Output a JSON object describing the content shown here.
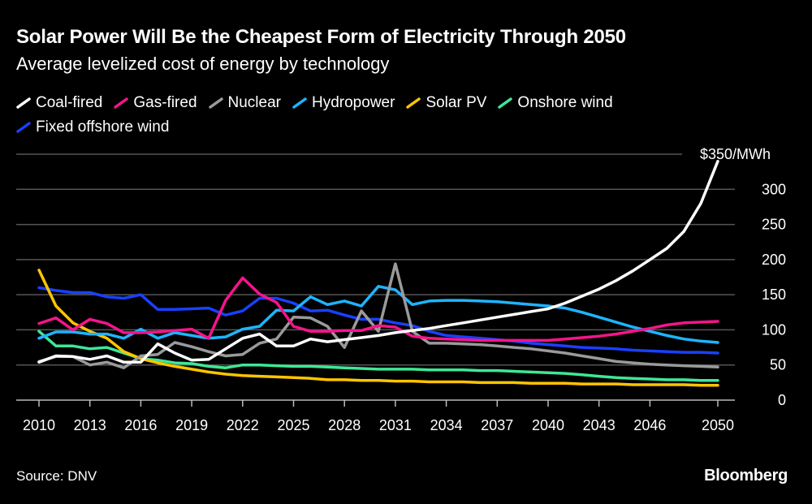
{
  "title": "Solar Power Will Be the Cheapest Form of Electricity Through 2050",
  "subtitle": "Average levelized cost of energy by technology",
  "source": "Source: DNV",
  "logo": "Bloomberg",
  "chart_data": {
    "type": "line",
    "title": "Solar Power Will Be the Cheapest Form of Electricity Through 2050",
    "subtitle": "Average levelized cost of energy by technology",
    "unit_label": "$350/MWh",
    "x": [
      2010,
      2011,
      2012,
      2013,
      2014,
      2015,
      2016,
      2017,
      2018,
      2019,
      2020,
      2021,
      2022,
      2023,
      2024,
      2025,
      2026,
      2027,
      2028,
      2029,
      2030,
      2031,
      2032,
      2033,
      2034,
      2035,
      2036,
      2037,
      2038,
      2039,
      2040,
      2041,
      2042,
      2043,
      2044,
      2045,
      2046,
      2047,
      2048,
      2049,
      2050
    ],
    "xticks": [
      "2010",
      "2013",
      "2016",
      "2019",
      "2022",
      "2025",
      "2028",
      "2031",
      "2034",
      "2037",
      "2040",
      "2043",
      "2046",
      "2050"
    ],
    "xtick_values": [
      2010,
      2013,
      2016,
      2019,
      2022,
      2025,
      2028,
      2031,
      2034,
      2037,
      2040,
      2043,
      2046,
      2050
    ],
    "yticks": [
      "0",
      "50",
      "100",
      "150",
      "200",
      "250",
      "300"
    ],
    "ytick_values": [
      0,
      50,
      100,
      150,
      200,
      250,
      300
    ],
    "ylim": [
      0,
      350
    ],
    "xlim": [
      2010,
      2050
    ],
    "grid": true,
    "legend_position": "top",
    "series": [
      {
        "name": "Coal-fired",
        "color": "#ffffff",
        "values": [
          54,
          63,
          62,
          58,
          63,
          54,
          54,
          80,
          67,
          57,
          58,
          73,
          88,
          94,
          77,
          77,
          87,
          83,
          86,
          89,
          92,
          96,
          99,
          102,
          106,
          110,
          114,
          118,
          122,
          126,
          130,
          138,
          148,
          158,
          170,
          184,
          200,
          216,
          240,
          280,
          340
        ]
      },
      {
        "name": "Gas-fired",
        "color": "#f5148b",
        "values": [
          109,
          117,
          100,
          115,
          109,
          96,
          96,
          97,
          99,
          101,
          88,
          142,
          174,
          151,
          139,
          105,
          98,
          98,
          99,
          99,
          106,
          104,
          91,
          88,
          87,
          86,
          85,
          85,
          85,
          85,
          85,
          87,
          89,
          91,
          94,
          98,
          102,
          107,
          110,
          111,
          112
        ]
      },
      {
        "name": "Nuclear",
        "color": "#9a9a9a",
        "values": [
          55,
          62,
          62,
          50,
          54,
          46,
          63,
          65,
          82,
          76,
          69,
          63,
          65,
          81,
          87,
          118,
          117,
          105,
          75,
          127,
          98,
          194,
          98,
          81,
          81,
          80,
          79,
          77,
          75,
          73,
          70,
          67,
          63,
          59,
          55,
          53,
          51,
          50,
          49,
          48,
          47
        ]
      },
      {
        "name": "Hydropower",
        "color": "#1eb4ff",
        "values": [
          88,
          97,
          97,
          94,
          94,
          88,
          101,
          88,
          96,
          92,
          88,
          90,
          101,
          105,
          128,
          127,
          147,
          136,
          141,
          134,
          162,
          157,
          136,
          141,
          142,
          142,
          141,
          140,
          138,
          136,
          134,
          131,
          125,
          118,
          111,
          104,
          98,
          92,
          87,
          84,
          82
        ]
      },
      {
        "name": "Solar PV",
        "color": "#ffc400",
        "values": [
          185,
          134,
          110,
          98,
          88,
          69,
          59,
          53,
          48,
          44,
          40,
          37,
          35,
          34,
          33,
          32,
          31,
          29,
          29,
          28,
          28,
          27,
          27,
          26,
          26,
          26,
          25,
          25,
          25,
          24,
          24,
          24,
          23,
          23,
          23,
          22,
          22,
          22,
          22,
          21,
          21
        ]
      },
      {
        "name": "Onshore wind",
        "color": "#3ee796",
        "values": [
          98,
          77,
          77,
          73,
          75,
          67,
          59,
          57,
          53,
          52,
          48,
          46,
          50,
          50,
          49,
          48,
          48,
          47,
          46,
          45,
          44,
          44,
          44,
          43,
          43,
          43,
          42,
          42,
          41,
          40,
          39,
          38,
          36,
          34,
          32,
          31,
          30,
          29,
          29,
          28,
          28
        ]
      },
      {
        "name": "Fixed offshore wind",
        "color": "#1a40ff",
        "values": [
          160,
          156,
          153,
          153,
          147,
          145,
          150,
          129,
          129,
          130,
          131,
          121,
          127,
          145,
          145,
          138,
          127,
          128,
          121,
          115,
          115,
          110,
          106,
          98,
          92,
          90,
          88,
          86,
          84,
          81,
          79,
          77,
          75,
          74,
          73,
          71,
          70,
          69,
          68,
          68,
          67
        ]
      }
    ]
  }
}
